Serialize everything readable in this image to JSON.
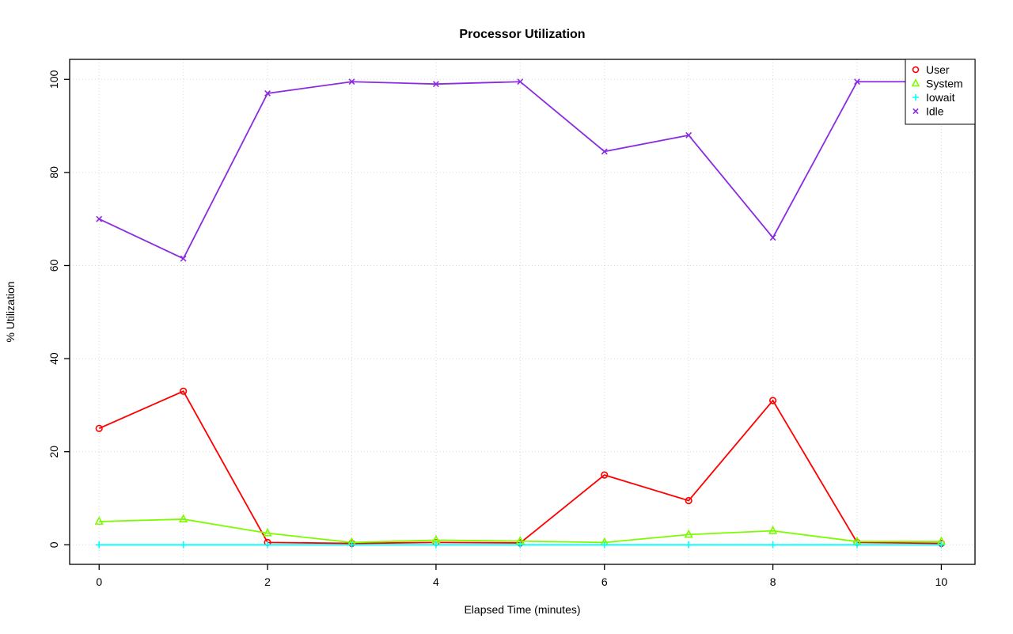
{
  "chart_data": {
    "type": "line",
    "title": "Processor Utilization",
    "xlabel": "Elapsed Time (minutes)",
    "ylabel": "% Utilization",
    "x": [
      0,
      1,
      2,
      3,
      4,
      5,
      6,
      7,
      8,
      9,
      10
    ],
    "series": [
      {
        "name": "User",
        "color": "#FF0000",
        "marker": "circle",
        "values": [
          25,
          33,
          0.5,
          0.3,
          0.5,
          0.4,
          15,
          9.5,
          31,
          0.5,
          0.3
        ]
      },
      {
        "name": "System",
        "color": "#7CFC00",
        "marker": "triangle",
        "values": [
          5,
          5.5,
          2.5,
          0.5,
          1,
          0.8,
          0.5,
          2.2,
          3,
          0.7,
          0.7
        ]
      },
      {
        "name": "Iowait",
        "color": "#00FFFF",
        "marker": "plus",
        "values": [
          0,
          0,
          0,
          0,
          0,
          0,
          0,
          0,
          0,
          0,
          0
        ]
      },
      {
        "name": "Idle",
        "color": "#8A2BE2",
        "marker": "x",
        "values": [
          70,
          61.5,
          97,
          99.5,
          99,
          99.5,
          84.5,
          88,
          66,
          99.5,
          99.5
        ]
      }
    ],
    "xticks": [
      0,
      2,
      4,
      6,
      8,
      10
    ],
    "yticks": [
      0,
      20,
      40,
      60,
      80,
      100
    ],
    "xlim": [
      -0.35,
      10.4
    ],
    "ylim": [
      -4.2,
      104.3
    ],
    "grid": true,
    "grid_x_every": 1,
    "legend": {
      "position": "top-right",
      "entries": [
        "User",
        "System",
        "Iowait",
        "Idle"
      ]
    },
    "colors": {
      "grid": "#D8D8D8",
      "axis": "#000000",
      "background": "#FFFFFF"
    }
  }
}
